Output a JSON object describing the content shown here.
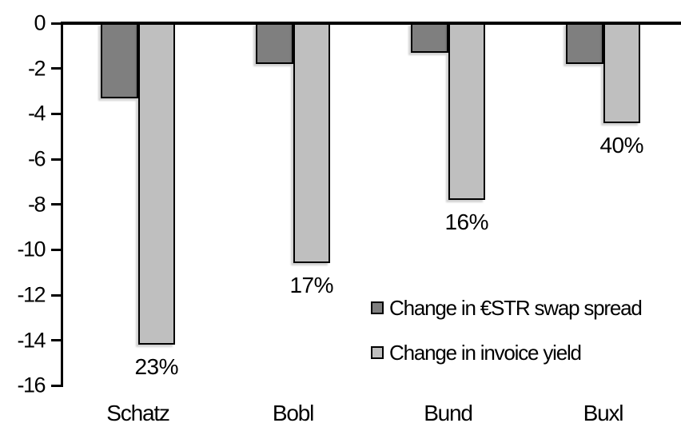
{
  "chart_data": {
    "type": "bar",
    "categories": [
      "Schatz",
      "Bobl",
      "Bund",
      "Buxl"
    ],
    "series": [
      {
        "name": "Change in €STR swap spread",
        "color": "#7F7F7F",
        "values": [
          -3.3,
          -1.8,
          -1.3,
          -1.8
        ]
      },
      {
        "name": "Change in invoice yield",
        "color": "#BFBFBF",
        "values": [
          -14.2,
          -10.6,
          -7.8,
          -4.4
        ]
      }
    ],
    "bar_labels": {
      "series": "Change in invoice yield",
      "values": [
        "23%",
        "17%",
        "16%",
        "40%"
      ]
    },
    "title": "",
    "xlabel": "",
    "ylabel": "",
    "ylim": [
      -16,
      0
    ],
    "yticks": [
      0,
      -2,
      -4,
      -6,
      -8,
      -10,
      -12,
      -14,
      -16
    ],
    "ytick_labels": [
      "0",
      "-2",
      "-4",
      "-6",
      "-8",
      "-10",
      "-12",
      "-14",
      "-16"
    ],
    "grid": false,
    "legend_position": "inside-right",
    "bar_border_color": "#000000",
    "axis_color": "#000000",
    "background_color": "#FFFFFF"
  }
}
